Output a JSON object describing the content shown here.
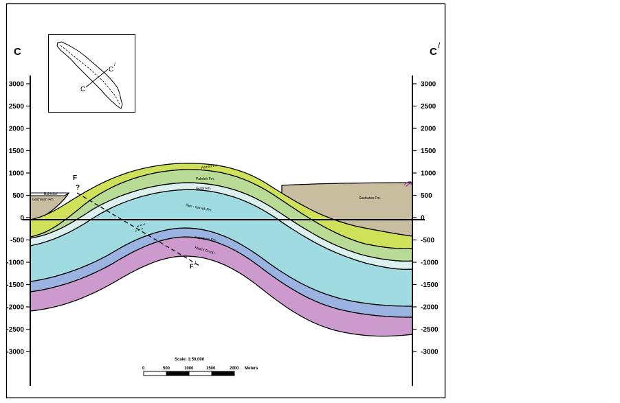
{
  "section": {
    "end_left": "C",
    "end_right": "C",
    "end_right_prime": "/",
    "axis_ticks": [
      "3000",
      "2500",
      "2000",
      "1500",
      "1000",
      "500",
      "0",
      "-500",
      "-1000",
      "-1500",
      "-2000",
      "-2500",
      "-3000"
    ]
  },
  "formations": {
    "gachsaran_left": "Gacharan Fm.",
    "gachsaran_right": "Gacharan Fm.",
    "top_left_small": "Bakhtiari",
    "asmari": "Asmari Fm.",
    "pabdeh": "Pabdeh Fm.",
    "gurpi": "Gurpi Fm.",
    "sarvak": "Ilam - Sarvak Fm.",
    "kazhdumi": "Kazhdumi Fm.",
    "khami": "Khami Group."
  },
  "fault": {
    "label_top": "F",
    "question": "?",
    "label_bottom": "F",
    "label_bottom_prime": "/"
  },
  "inset_map": {
    "label_c": "C",
    "label_c_prime": "C",
    "label_c_prime_mark": "/"
  },
  "scale_bar": {
    "title": "Scale:  1:50,000",
    "ticks": [
      "0",
      "500",
      "1000",
      "1500",
      "2000"
    ],
    "unit": "Meters"
  },
  "colors": {
    "gachsaran": "#c9bd9f",
    "asmari": "#cfe159",
    "pabdeh": "#b8db95",
    "gurpi": "#dcf0ee",
    "sarvak": "#9fdbe0",
    "kazhdumi": "#9bb3e0",
    "khami": "#cc9acc"
  }
}
